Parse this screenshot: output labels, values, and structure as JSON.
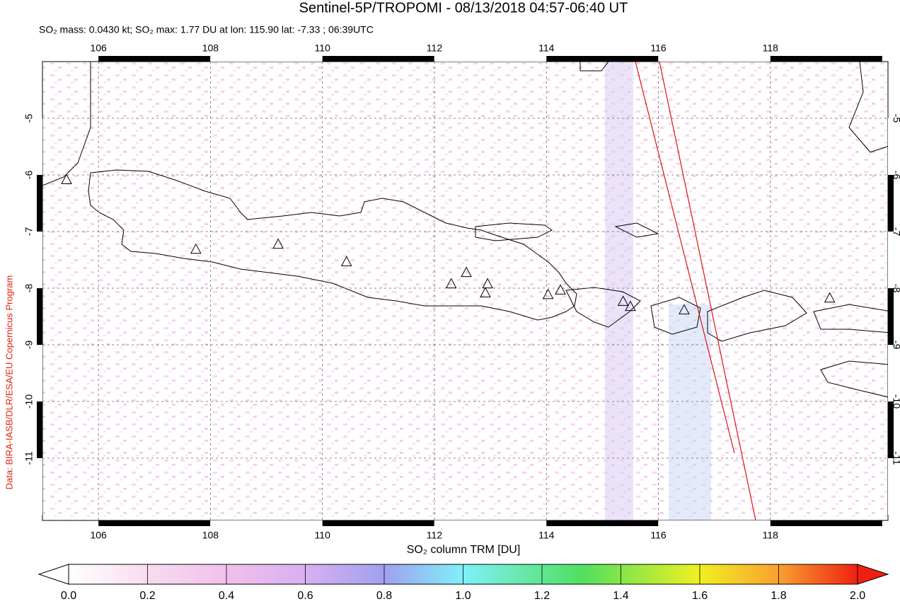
{
  "chart_data": {
    "type": "map",
    "title": "Sentinel-5P/TROPOMI - 08/13/2018 04:57-06:40 UT",
    "subtitle": "SO₂ mass: 0.0430 kt; SO₂ max: 1.77 DU at lon: 115.90 lat: -7.33 ; 06:39UTC",
    "side_note": "Data: BIRA-IASB/DLR/ESA/EU Copernicus Program",
    "xlim": [
      105,
      120.1
    ],
    "ylim": [
      -12.1,
      -4.0
    ],
    "xticks": [
      106,
      108,
      110,
      112,
      114,
      116,
      118
    ],
    "yticks": [
      -5,
      -6,
      -7,
      -8,
      -9,
      -10,
      -11
    ],
    "grid": true,
    "volcanoes": {
      "lon": [
        105.43,
        107.74,
        109.21,
        110.43,
        112.3,
        112.57,
        112.95,
        112.91,
        114.03,
        114.25,
        115.37,
        115.5,
        116.46,
        119.06
      ],
      "lat": [
        -6.08,
        -7.31,
        -7.22,
        -7.53,
        -7.92,
        -7.72,
        -7.92,
        -8.08,
        -8.11,
        -8.03,
        -8.23,
        -8.32,
        -8.38,
        -8.17
      ]
    },
    "colorbar": {
      "label": "SO₂ column TRM [DU]",
      "lim": [
        0,
        2
      ],
      "ticks": [
        {
          "value": 0,
          "label": "0.0"
        },
        {
          "value": 0.2,
          "label": "0.2"
        },
        {
          "value": 0.4,
          "label": "0.4"
        },
        {
          "value": 0.6,
          "label": "0.6"
        },
        {
          "value": 0.8,
          "label": "0.8"
        },
        {
          "value": 1,
          "label": "1.0"
        },
        {
          "value": 1.2,
          "label": "1.2"
        },
        {
          "value": 1.4,
          "label": "1.4"
        },
        {
          "value": 1.6,
          "label": "1.6"
        },
        {
          "value": 1.8,
          "label": "1.8"
        },
        {
          "value": 2,
          "label": "2.0"
        }
      ]
    }
  }
}
